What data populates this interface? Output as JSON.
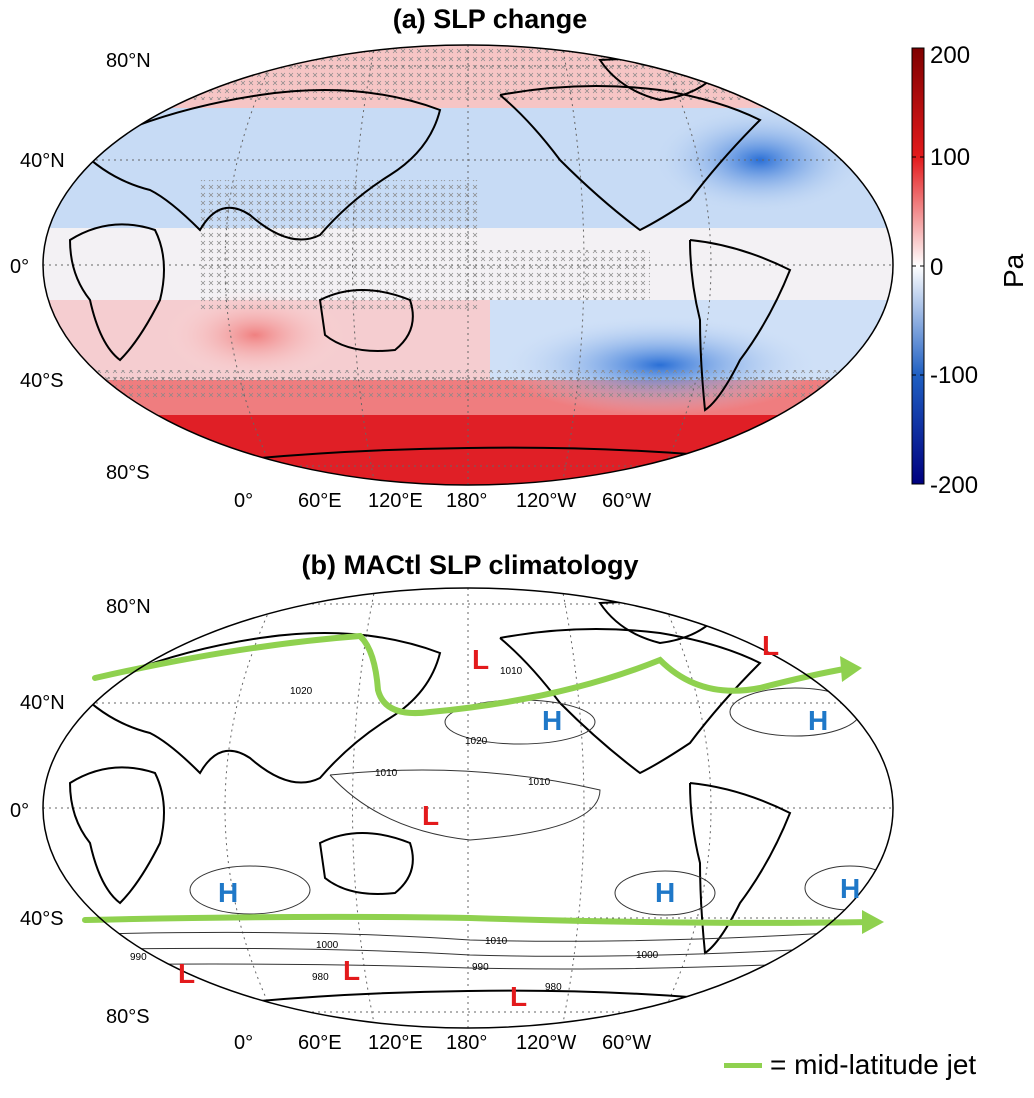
{
  "panel_a": {
    "title": "(a) SLP change",
    "lat_labels": {
      "n80": "80°N",
      "n40": "40°N",
      "eq": "0°",
      "s40": "40°S",
      "s80": "80°S"
    },
    "lon_labels": {
      "l0": "0°",
      "e60": "60°E",
      "e120": "120°E",
      "d180": "180°",
      "w120": "120°W",
      "w60": "60°W"
    },
    "colorbar": {
      "ticks": {
        "t200": "200",
        "t100": "100",
        "t0": "0",
        "tm100": "-100",
        "tm200": "-200"
      },
      "unit": "Pa",
      "range": [
        -200,
        200
      ],
      "colors": {
        "max": "#7f0000",
        "mid_pos": "#e31a1c",
        "zero": "#ffffff",
        "mid_neg": "#1f5fc2",
        "min": "#00007f"
      }
    }
  },
  "panel_b": {
    "title": "(b) MACtl SLP climatology",
    "lat_labels": {
      "n80": "80°N",
      "n40": "40°N",
      "eq": "0°",
      "s40": "40°S",
      "s80": "80°S"
    },
    "lon_labels": {
      "l0": "0°",
      "e60": "60°E",
      "e120": "120°E",
      "d180": "180°",
      "w120": "120°W",
      "w60": "60°W"
    },
    "pressure_centers": {
      "H": "H",
      "L": "L",
      "H_color": "#1f78c8",
      "L_color": "#e31a1c"
    },
    "contour_labels": {
      "c1020": "1020",
      "c1010": "1010",
      "c1000": "1000",
      "c990": "990",
      "c980": "980"
    },
    "jet_color": "#8fd14f"
  },
  "legend": {
    "label": "= mid-latitude jet"
  }
}
